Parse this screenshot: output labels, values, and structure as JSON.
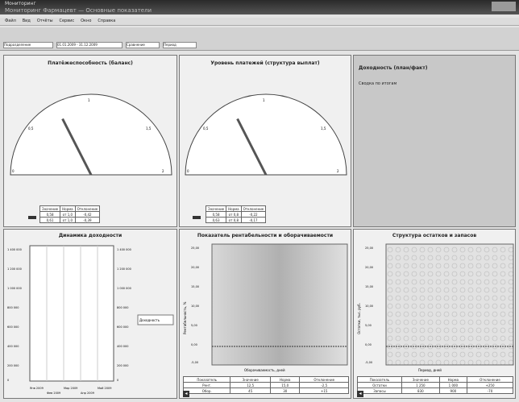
{
  "window": {
    "title_line1": "Мониторинг",
    "title_line2": "Мониторинг Фармацевт — Основные показатели"
  },
  "menu": [
    "Файл",
    "Вид",
    "Отчёты",
    "Сервис",
    "Окно",
    "Справка"
  ],
  "toolbar": {
    "field1": "Подразделение",
    "field2": "01.01.2009 - 31.12.2009",
    "field3": "Сравнение",
    "field4": "Период"
  },
  "panels": {
    "gauge1": {
      "title": "Платёжеспособность (баланс)",
      "ticks": [
        "0",
        "0,5",
        "1",
        "1,5",
        "2"
      ],
      "value": 0.7,
      "table": [
        [
          "Значение",
          "Норма",
          "Отклонение"
        ],
        [
          "0,58",
          "от 1,0",
          "-0,42"
        ],
        [
          "0,61",
          "от 1,0",
          "-0,39"
        ]
      ]
    },
    "gauge2": {
      "title": "Уровень платежей (структура выплат)",
      "ticks": [
        "0",
        "0,5",
        "1",
        "1,5",
        "2"
      ],
      "value": 0.7,
      "table": [
        [
          "Значение",
          "Норма",
          "Отклонение"
        ],
        [
          "0,58",
          "от 0,8",
          "-0,22"
        ],
        [
          "0,63",
          "от 0,8",
          "-0,17"
        ]
      ]
    },
    "info": {
      "title": "Доходность (план/факт)",
      "text": "Сводка по итогам"
    },
    "chart1": {
      "title": "Динамика доходности",
      "left_ticks": [
        "1 400 000",
        "1 200 000",
        "1 000 000",
        "800 000",
        "600 000",
        "400 000",
        "200 000",
        "0"
      ],
      "right_ticks": [
        "1 400 000",
        "1 200 000",
        "1 000 000",
        "800 000",
        "600 000",
        "400 000",
        "200 000",
        "0"
      ],
      "x_labels": [
        "Янв 2009",
        "Фев 2009",
        "Мар 2009",
        "Апр 2009",
        "Май 2009"
      ],
      "legend": "Доходность"
    },
    "chart2": {
      "title": "Показатель рентабельности и оборачиваемости",
      "ylabel": "Рентабельность, %",
      "xlabel": "Оборачиваемость, дней",
      "y_ticks": [
        "25,00",
        "20,00",
        "15,00",
        "10,00",
        "5,00",
        "0,00",
        "-5,00"
      ],
      "table_head": [
        "Показатель",
        "Значение",
        "Норма",
        "Отклонение"
      ],
      "table_rows": [
        [
          "Рент.",
          "12,5",
          "15,0",
          "-2,5"
        ],
        [
          "Обор.",
          "45",
          "30",
          "+15"
        ]
      ]
    },
    "chart3": {
      "title": "Структура остатков и запасов",
      "ylabel": "Остатки, тыс. руб.",
      "xlabel": "Период, дней",
      "y_ticks": [
        "25,00",
        "20,00",
        "15,00",
        "10,00",
        "5,00",
        "0,00",
        "-5,00"
      ],
      "table_head": [
        "Показатель",
        "Значение",
        "Норма",
        "Отклонение"
      ],
      "table_rows": [
        [
          "Остатки",
          "1 250",
          "1 000",
          "+250"
        ],
        [
          "Запасы",
          "830",
          "900",
          "-70"
        ]
      ]
    }
  }
}
